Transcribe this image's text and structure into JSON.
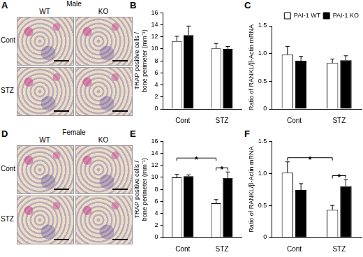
{
  "micrographs": [
    {
      "panel": "A",
      "title": "Male",
      "columns": [
        "WT",
        "KO"
      ],
      "rows": [
        "Cont",
        "STZ"
      ]
    },
    {
      "panel": "D",
      "title": "Female",
      "columns": [
        "WT",
        "KO"
      ],
      "rows": [
        "Cont",
        "STZ"
      ]
    }
  ],
  "chart_data": [
    {
      "panel": "B",
      "type": "bar",
      "y_label": [
        "TRAP positive cells /",
        "bone perimeter (mm⁻¹)"
      ],
      "categories": [
        "Cont",
        "STZ"
      ],
      "series": [
        {
          "name": "PAI-1 WT",
          "color": "#ffffff",
          "values": [
            11.3,
            10.1
          ],
          "errors": [
            0.8,
            0.8
          ]
        },
        {
          "name": "PAI-1 KO",
          "color": "#000000",
          "values": [
            12.3,
            10.0
          ],
          "errors": [
            1.5,
            0.4
          ]
        }
      ],
      "ylim": [
        0,
        16
      ],
      "yticks": [
        0,
        2,
        4,
        6,
        8,
        10,
        12,
        14,
        16
      ]
    },
    {
      "panel": "C",
      "type": "bar",
      "y_label": "Ratio of RANKL/β-Actin mRNA",
      "categories": [
        "Cont",
        "STZ"
      ],
      "series": [
        {
          "name": "PAI-1 WT",
          "color": "#ffffff",
          "values": [
            0.98,
            0.83
          ],
          "errors": [
            0.15,
            0.07
          ]
        },
        {
          "name": "PAI-1 KO",
          "color": "#000000",
          "values": [
            0.87,
            0.88
          ],
          "errors": [
            0.08,
            0.08
          ]
        }
      ],
      "ylim": [
        0,
        1.5
      ],
      "yticks": [
        0,
        0.5,
        {
          "value": 1,
          "label": "1.0"
        },
        1.5
      ],
      "legend": "top-right"
    },
    {
      "panel": "E",
      "type": "bar",
      "y_label": [
        "TRAP positive cells /",
        "bone perimeter (mm⁻¹)"
      ],
      "categories": [
        "Cont",
        "STZ"
      ],
      "series": [
        {
          "name": "PAI-1 WT",
          "color": "#ffffff",
          "values": [
            10.0,
            5.7
          ],
          "errors": [
            0.5,
            0.6
          ]
        },
        {
          "name": "PAI-1 KO",
          "color": "#000000",
          "values": [
            10.2,
            9.9
          ],
          "errors": [
            0.2,
            1.0
          ]
        }
      ],
      "ylim": [
        0,
        16
      ],
      "yticks": [
        0,
        2,
        4,
        6,
        8,
        10,
        12,
        14,
        16
      ],
      "annotations": [
        {
          "text": "*",
          "from": {
            "category": "STZ",
            "series": "PAI-1 WT"
          },
          "to": {
            "category": "STZ",
            "series": "PAI-1 KO"
          }
        },
        {
          "text": "*",
          "from": {
            "category": "Cont",
            "series": "PAI-1 WT"
          },
          "to": {
            "category": "STZ",
            "series": "PAI-1 WT"
          }
        }
      ]
    },
    {
      "panel": "F",
      "type": "bar",
      "y_label": "Ratio of RANKL/β-Actin mRNA",
      "categories": [
        "Cont",
        "STZ"
      ],
      "series": [
        {
          "name": "PAI-1 WT",
          "color": "#ffffff",
          "values": [
            1.01,
            0.43
          ],
          "errors": [
            0.17,
            0.07
          ]
        },
        {
          "name": "PAI-1 KO",
          "color": "#000000",
          "values": [
            0.74,
            0.8
          ],
          "errors": [
            0.1,
            0.1
          ]
        }
      ],
      "ylim": [
        0,
        1.5
      ],
      "yticks": [
        0,
        0.5,
        {
          "value": 1,
          "label": "1.0"
        },
        1.5
      ],
      "annotations": [
        {
          "text": "*",
          "from": {
            "category": "STZ",
            "series": "PAI-1 WT"
          },
          "to": {
            "category": "STZ",
            "series": "PAI-1 KO"
          }
        },
        {
          "text": "*",
          "from": {
            "category": "Cont",
            "series": "PAI-1 WT"
          },
          "to": {
            "category": "STZ",
            "series": "PAI-1 WT"
          }
        }
      ]
    }
  ]
}
